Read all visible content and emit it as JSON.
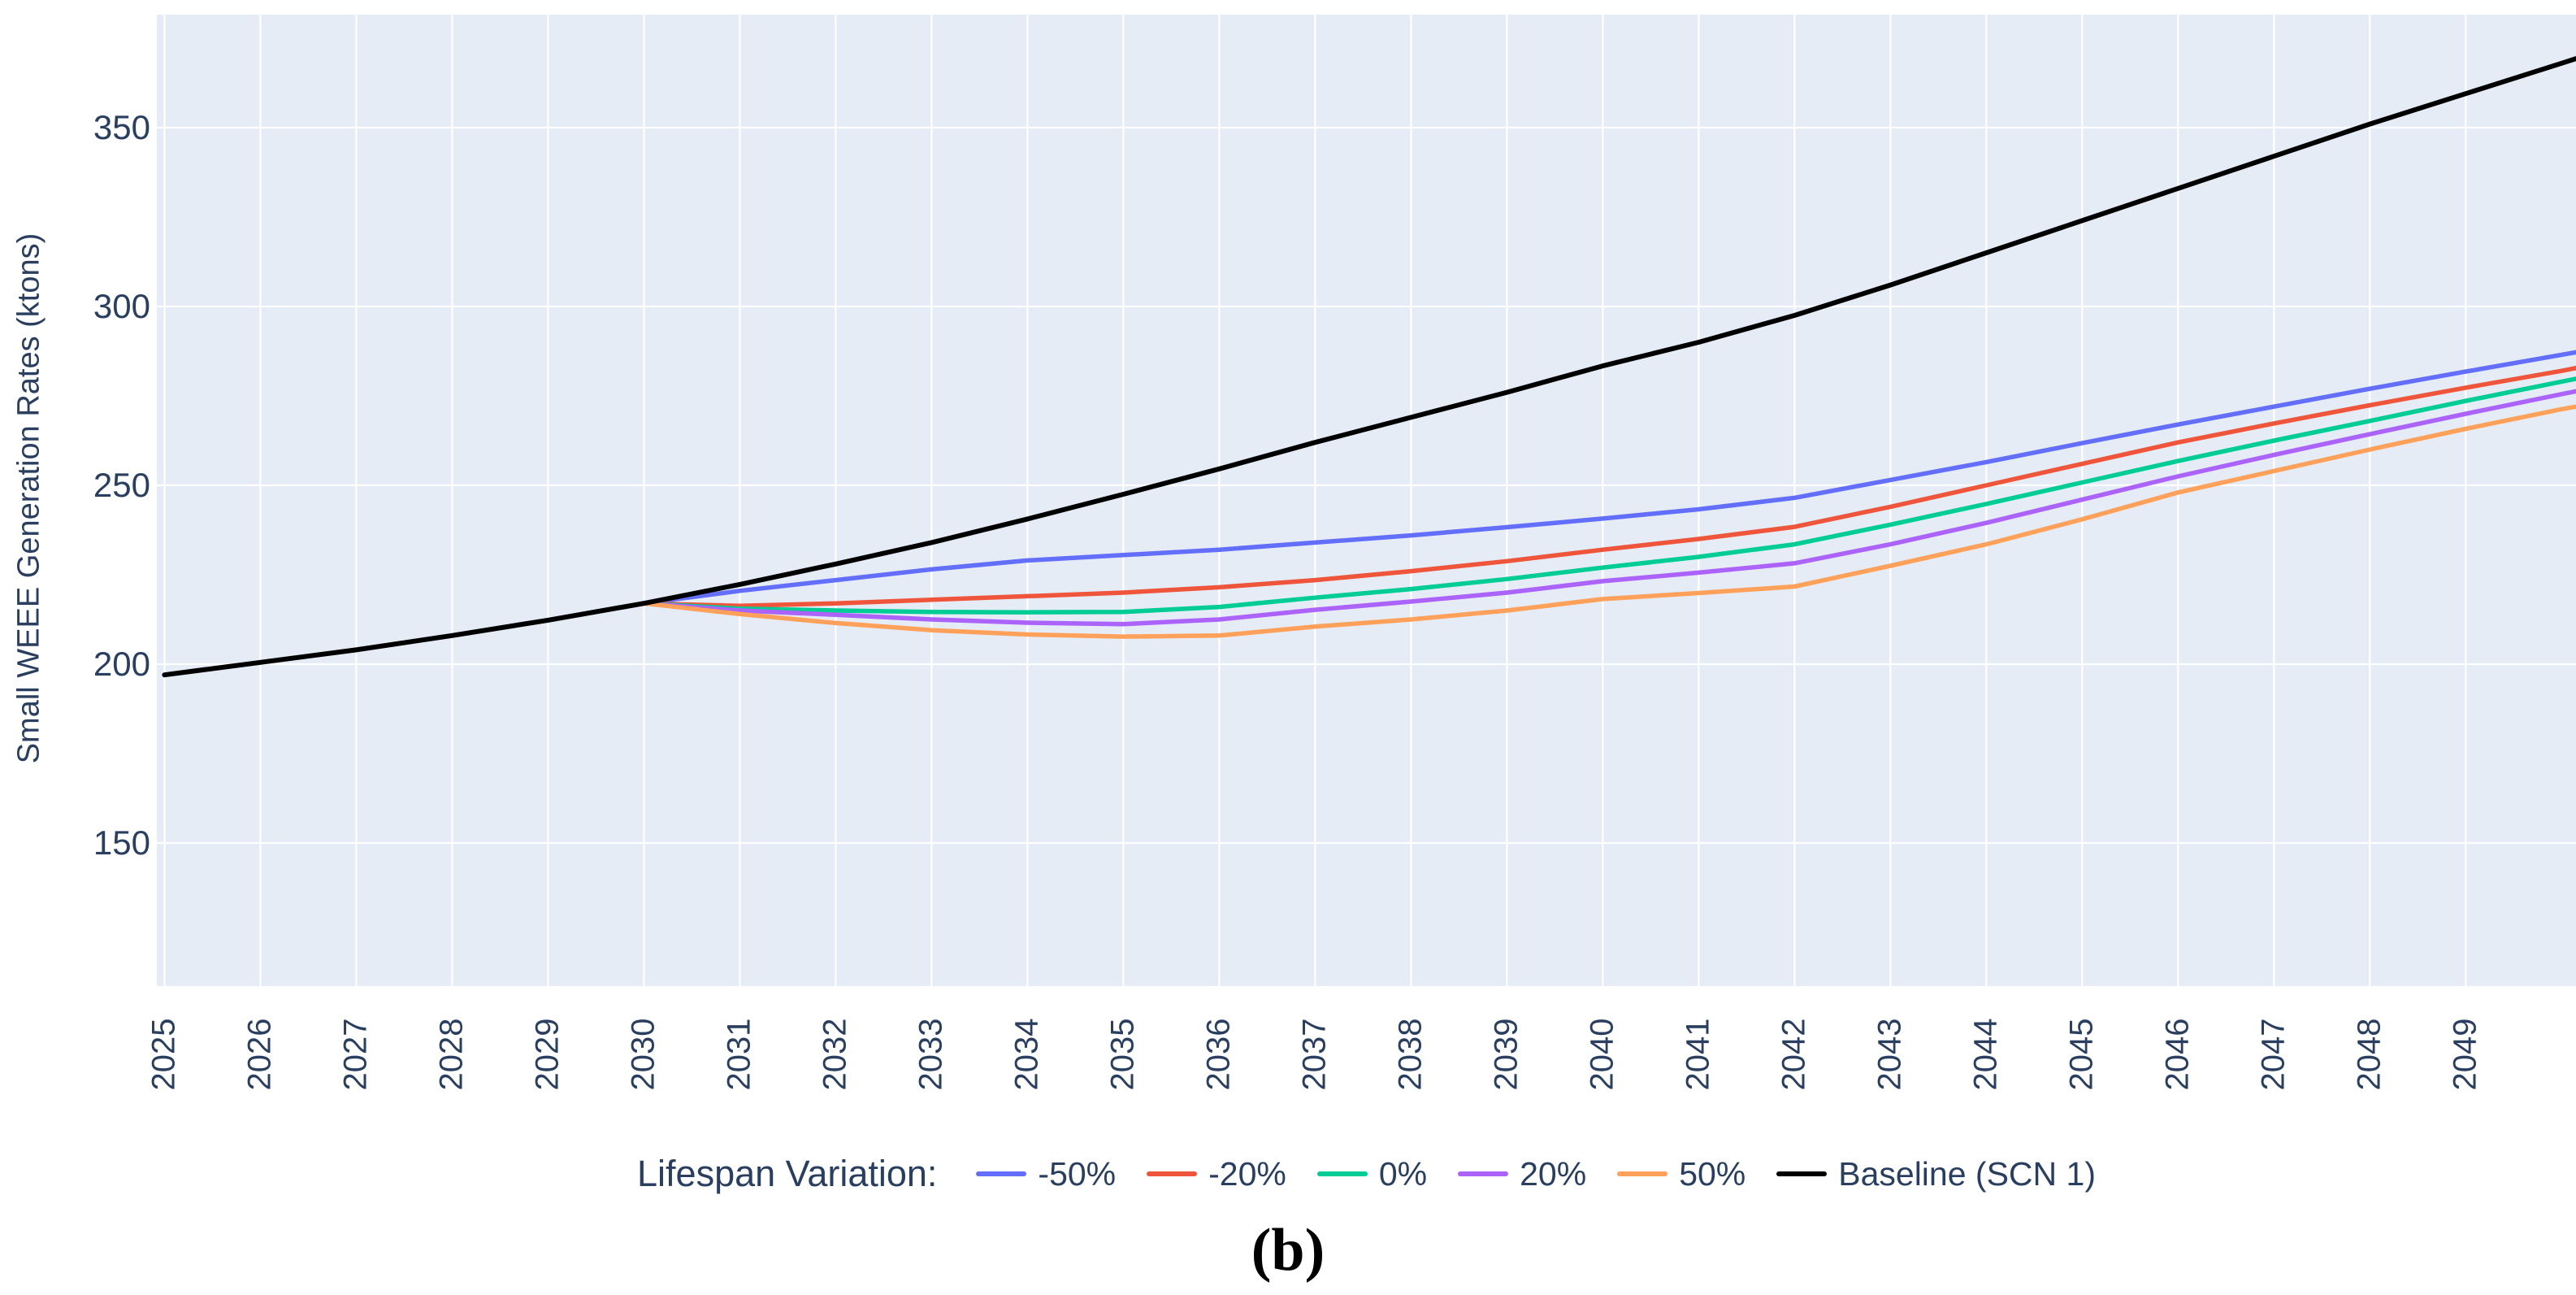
{
  "figure": {
    "caption": "(b)"
  },
  "chart_data": {
    "type": "line",
    "title": "",
    "xlabel": "",
    "ylabel": "Small WEEE Generation Rates (ktons)",
    "legend_title": "Lifespan Variation:",
    "legend_position": "bottom-horizontal-center",
    "grid": true,
    "plot_bg": "#E5ECF6",
    "grid_color": "#FFFFFF",
    "axis_font_color": "#2a3f5f",
    "x_ticks": [
      2025,
      2026,
      2027,
      2028,
      2029,
      2030,
      2031,
      2032,
      2033,
      2034,
      2035,
      2036,
      2037,
      2038,
      2039,
      2040,
      2041,
      2042,
      2043,
      2044,
      2045,
      2046,
      2047,
      2048,
      2049
    ],
    "y_ticks": [
      150,
      200,
      250,
      300,
      350
    ],
    "x_range": [
      2024.92,
      2050.15
    ],
    "y_range": [
      110,
      381.6
    ],
    "x": [
      2025,
      2026,
      2027,
      2028,
      2029,
      2030,
      2031,
      2032,
      2033,
      2034,
      2035,
      2036,
      2037,
      2038,
      2039,
      2040,
      2041,
      2042,
      2043,
      2044,
      2045,
      2046,
      2047,
      2048,
      2049,
      2050,
      2050.15
    ],
    "series": [
      {
        "name": "-50%",
        "color": "#636EFA",
        "width": 5.5,
        "values": [
          197,
          200.5,
          204,
          208,
          212.3,
          217,
          220.5,
          223.5,
          226.5,
          229,
          230.5,
          232,
          234,
          236,
          238.3,
          240.7,
          243.3,
          246.5,
          251.5,
          256.5,
          261.8,
          267,
          272,
          277,
          281.8,
          286.5,
          287.2
        ]
      },
      {
        "name": "-20%",
        "color": "#EF553B",
        "width": 5.5,
        "values": [
          197,
          200.5,
          204,
          208,
          212.3,
          217,
          216.3,
          217,
          218,
          219,
          220,
          221.5,
          223.5,
          226,
          228.8,
          232,
          235,
          238.4,
          244,
          250,
          256,
          262,
          267.3,
          272.4,
          277.3,
          282,
          282.8
        ]
      },
      {
        "name": "0%",
        "color": "#00CC96",
        "width": 5.5,
        "values": [
          197,
          200.5,
          204,
          208,
          212.3,
          217,
          215.5,
          215,
          214.6,
          214.5,
          214.6,
          216,
          218.6,
          221,
          223.8,
          227,
          230,
          233.5,
          239,
          244.8,
          250.8,
          256.8,
          262.5,
          268,
          273.6,
          279,
          279.8
        ]
      },
      {
        "name": "20%",
        "color": "#AB63FA",
        "width": 5.5,
        "values": [
          197,
          200.5,
          204,
          208,
          212.3,
          217,
          215,
          213.8,
          212.5,
          211.6,
          211.2,
          212.5,
          215.2,
          217.5,
          220,
          223.2,
          225.6,
          228.2,
          233.5,
          239.5,
          246,
          252.5,
          258.5,
          264.3,
          270,
          275.5,
          276.3
        ]
      },
      {
        "name": "50%",
        "color": "#FFA15A",
        "width": 5.5,
        "values": [
          197,
          200.5,
          204,
          208,
          212.3,
          217,
          214,
          211.5,
          209.5,
          208.3,
          207.7,
          208,
          210.5,
          212.5,
          215,
          218.2,
          219.9,
          221.7,
          227.5,
          233.5,
          240.5,
          248,
          254,
          260,
          265.8,
          271.3,
          272
        ]
      },
      {
        "name": "Baseline (SCN 1)",
        "color": "#000000",
        "width": 6,
        "values": [
          197,
          200.5,
          204,
          208,
          212.3,
          217,
          222.3,
          228,
          234,
          240.6,
          247.5,
          254.6,
          262,
          269,
          276,
          283.4,
          290,
          297.5,
          306,
          315,
          324,
          333,
          342,
          351,
          359.5,
          368,
          369.3
        ]
      }
    ]
  }
}
